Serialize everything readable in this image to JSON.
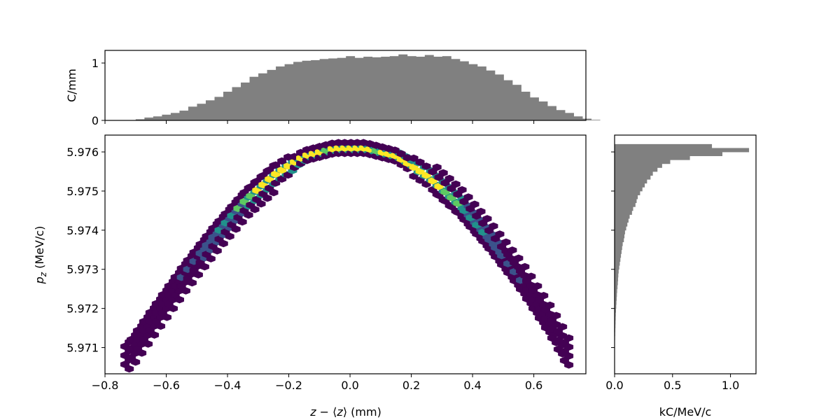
{
  "chart_data": [
    {
      "type": "bar",
      "role": "top-marginal-histogram",
      "color": "#808080",
      "xlim": [
        -0.8,
        0.77
      ],
      "ylim": [
        0,
        1.22
      ],
      "ylabel": "C/mm",
      "yticks": [
        0,
        1
      ],
      "ytick_labels": [
        "0",
        "1"
      ],
      "bin_width": 0.0286,
      "x_start": -0.757,
      "values": [
        0.0,
        0.0,
        0.02,
        0.05,
        0.07,
        0.1,
        0.13,
        0.17,
        0.24,
        0.29,
        0.35,
        0.41,
        0.5,
        0.58,
        0.66,
        0.76,
        0.82,
        0.88,
        0.94,
        0.98,
        1.02,
        1.04,
        1.05,
        1.07,
        1.08,
        1.09,
        1.12,
        1.09,
        1.11,
        1.1,
        1.11,
        1.12,
        1.15,
        1.12,
        1.11,
        1.14,
        1.11,
        1.12,
        1.07,
        1.03,
        0.98,
        0.94,
        0.87,
        0.8,
        0.7,
        0.62,
        0.5,
        0.4,
        0.33,
        0.25,
        0.18,
        0.13,
        0.07,
        0.03,
        0.01
      ]
    },
    {
      "type": "heatmap",
      "role": "main-hexbin",
      "colormap": [
        "#440154",
        "#3b528b",
        "#21918c",
        "#5ec962",
        "#fde725"
      ],
      "xlabel": "z − ⟨z⟩ (mm)",
      "ylabel": "p_z (MeV/c)",
      "xlim": [
        -0.8,
        0.77
      ],
      "ylim": [
        5.97033,
        5.97643
      ],
      "xticks": [
        -0.8,
        -0.6,
        -0.4,
        -0.2,
        0.0,
        0.2,
        0.4,
        0.6
      ],
      "xtick_labels": [
        "−0.8",
        "−0.6",
        "−0.4",
        "−0.2",
        "0.0",
        "0.2",
        "0.4",
        "0.6"
      ],
      "yticks": [
        5.971,
        5.972,
        5.973,
        5.974,
        5.975,
        5.976
      ],
      "ytick_labels": [
        "5.971",
        "5.972",
        "5.973",
        "5.974",
        "5.975",
        "5.976"
      ],
      "band_center_z": [
        -0.73,
        -0.65,
        -0.55,
        -0.45,
        -0.35,
        -0.25,
        -0.15,
        -0.05,
        0.05,
        0.15,
        0.25,
        0.35,
        0.45,
        0.55,
        0.65,
        0.7
      ],
      "band_center_pz": [
        5.9708,
        5.9717,
        5.9728,
        5.9738,
        5.9747,
        5.9754,
        5.9759,
        5.9761,
        5.9761,
        5.9759,
        5.9754,
        5.9747,
        5.9738,
        5.9728,
        5.9716,
        5.9709
      ],
      "peak_intensity_z": [
        -0.2,
        0.2
      ]
    },
    {
      "type": "bar",
      "orientation": "horizontal",
      "role": "right-marginal-histogram",
      "color": "#808080",
      "xlabel": "kC/MeV/c",
      "xlim": [
        0,
        1.22
      ],
      "xticks": [
        0.0,
        0.5,
        1.0
      ],
      "xtick_labels": [
        "0.0",
        "0.5",
        "1.0"
      ],
      "pz_bins": [
        5.97615,
        5.97605,
        5.97595,
        5.97585,
        5.97575,
        5.97565,
        5.97555,
        5.97545,
        5.97535,
        5.97525,
        5.97515,
        5.97505,
        5.97495,
        5.97485,
        5.97475,
        5.97465,
        5.97455,
        5.97445,
        5.97435,
        5.97425,
        5.97415,
        5.97405,
        5.97395,
        5.97385,
        5.97375,
        5.97365,
        5.97355,
        5.97345,
        5.97335,
        5.97325,
        5.97315,
        5.97305,
        5.97295,
        5.97285,
        5.97275,
        5.97265,
        5.97255,
        5.97245,
        5.97235,
        5.97225,
        5.97215,
        5.97205,
        5.97195,
        5.97185,
        5.97175,
        5.97165,
        5.97155,
        5.97145,
        5.97135,
        5.97125,
        5.97115
      ],
      "values": [
        0.84,
        1.16,
        0.93,
        0.65,
        0.48,
        0.41,
        0.37,
        0.33,
        0.31,
        0.28,
        0.26,
        0.24,
        0.22,
        0.2,
        0.19,
        0.18,
        0.16,
        0.15,
        0.13,
        0.12,
        0.11,
        0.1,
        0.09,
        0.085,
        0.08,
        0.07,
        0.065,
        0.06,
        0.055,
        0.05,
        0.045,
        0.04,
        0.035,
        0.032,
        0.03,
        0.028,
        0.025,
        0.022,
        0.02,
        0.018,
        0.016,
        0.014,
        0.012,
        0.01,
        0.009,
        0.008,
        0.007,
        0.006,
        0.005,
        0.004,
        0.003
      ]
    }
  ]
}
